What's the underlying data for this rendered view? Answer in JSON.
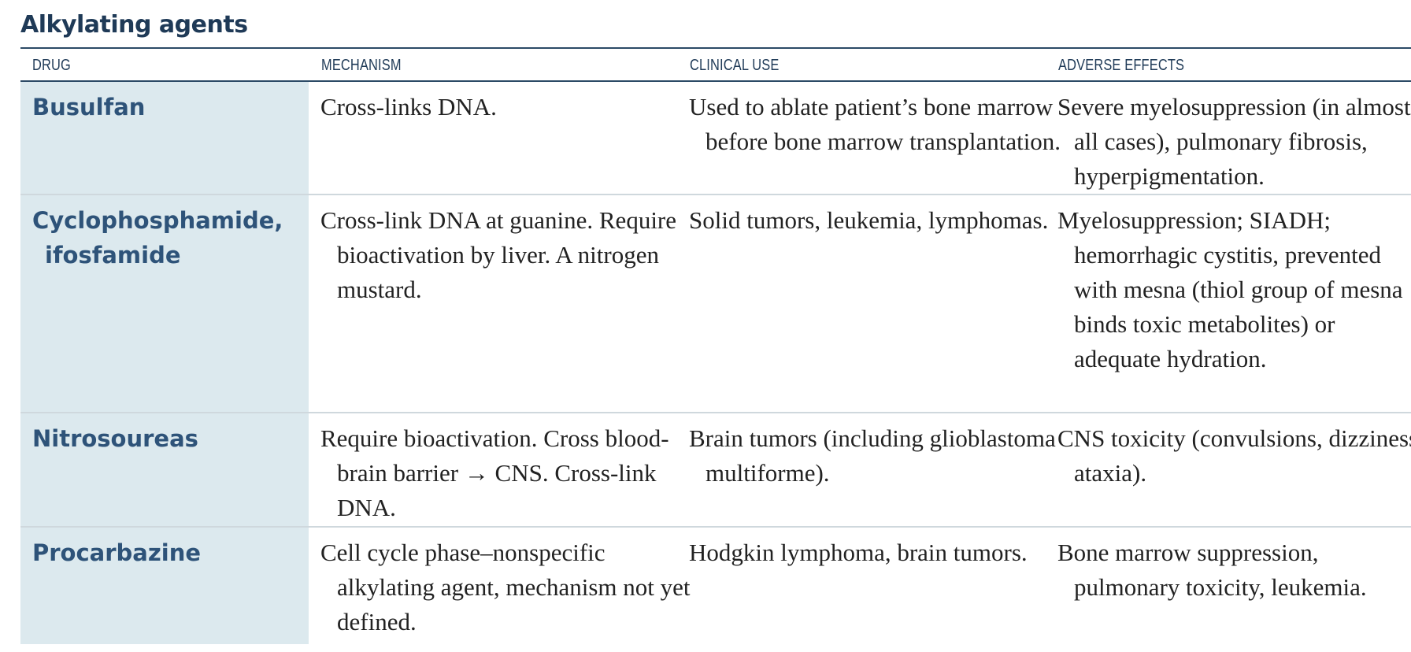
{
  "title": "Alkylating agents",
  "headers": {
    "drug": "DRUG",
    "mechanism": "MECHANISM",
    "clinical_use": "CLINICAL USE",
    "adverse_effects": "ADVERSE EFFECTS"
  },
  "rows": [
    {
      "drug": "Busulfan",
      "mechanism": "Cross-links DNA.",
      "clinical_use": "Used to ablate patient’s bone marrow before bone marrow transplantation.",
      "adverse_effects": "Severe myelosuppression (in almost all cases), pulmonary fibrosis, hyperpigmentation."
    },
    {
      "drug": "Cyclophosphamide, ifosfamide",
      "mechanism": "Cross-link DNA at guanine. Require bioactivation by liver. A nitrogen mustard.",
      "clinical_use": "Solid tumors, leukemia, lymphomas.",
      "adverse_effects": "Myelosuppression; SIADH; hemorrhagic cystitis, prevented with mesna (thiol group of mesna binds toxic metabolites) or adequate hydration."
    },
    {
      "drug": "Nitrosoureas",
      "mechanism": "Require bioactivation. Cross blood-brain barrier → CNS. Cross-link DNA.",
      "clinical_use": "Brain tumors (including glioblastoma multiforme).",
      "adverse_effects": "CNS toxicity (convulsions, dizziness, ataxia)."
    },
    {
      "drug": "Procarbazine",
      "mechanism": "Cell cycle phase–nonspecific alkylating agent, mechanism not yet defined.",
      "clinical_use": "Hodgkin lymphoma, brain tumors.",
      "adverse_effects": "Bone marrow suppression, pulmonary toxicity, leukemia."
    }
  ]
}
